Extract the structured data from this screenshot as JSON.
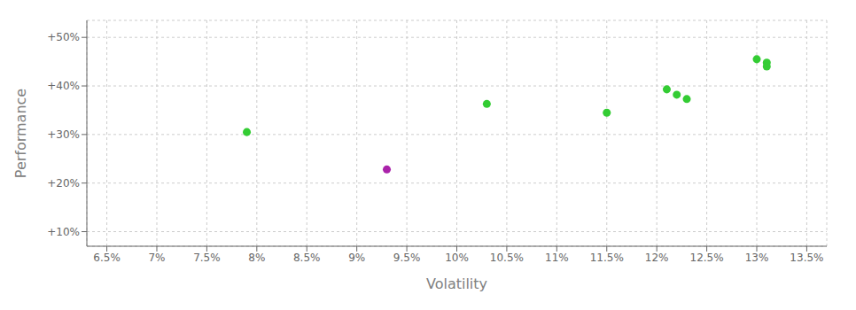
{
  "chart_data": {
    "type": "scatter",
    "xlabel": "Volatility",
    "ylabel": "Performance",
    "x": [
      0.093,
      0.079,
      0.103,
      0.115,
      0.121,
      0.122,
      0.123,
      0.13,
      0.131,
      0.131
    ],
    "values": [
      0.228,
      0.305,
      0.363,
      0.345,
      0.393,
      0.382,
      0.373,
      0.455,
      0.448,
      0.44
    ],
    "colors": [
      "#aa22aa",
      "#33cc33",
      "#33cc33",
      "#33cc33",
      "#33cc33",
      "#33cc33",
      "#33cc33",
      "#33cc33",
      "#33cc33",
      "#33cc33"
    ],
    "xlim": [
      0.063,
      0.137
    ],
    "ylim": [
      0.07,
      0.535
    ],
    "xticks": [
      {
        "value": 0.065,
        "label": "6.5%"
      },
      {
        "value": 0.07,
        "label": "7%"
      },
      {
        "value": 0.075,
        "label": "7.5%"
      },
      {
        "value": 0.08,
        "label": "8%"
      },
      {
        "value": 0.085,
        "label": "8.5%"
      },
      {
        "value": 0.09,
        "label": "9%"
      },
      {
        "value": 0.095,
        "label": "9.5%"
      },
      {
        "value": 0.1,
        "label": "10%"
      },
      {
        "value": 0.105,
        "label": "10.5%"
      },
      {
        "value": 0.11,
        "label": "11%"
      },
      {
        "value": 0.115,
        "label": "11.5%"
      },
      {
        "value": 0.12,
        "label": "12%"
      },
      {
        "value": 0.125,
        "label": "12.5%"
      },
      {
        "value": 0.13,
        "label": "13%"
      },
      {
        "value": 0.135,
        "label": "13.5%"
      }
    ],
    "yticks": [
      {
        "value": 0.1,
        "label": "+10%"
      },
      {
        "value": 0.2,
        "label": "+20%"
      },
      {
        "value": 0.3,
        "label": "+30%"
      },
      {
        "value": 0.4,
        "label": "+40%"
      },
      {
        "value": 0.5,
        "label": "+50%"
      }
    ],
    "grid": true
  }
}
